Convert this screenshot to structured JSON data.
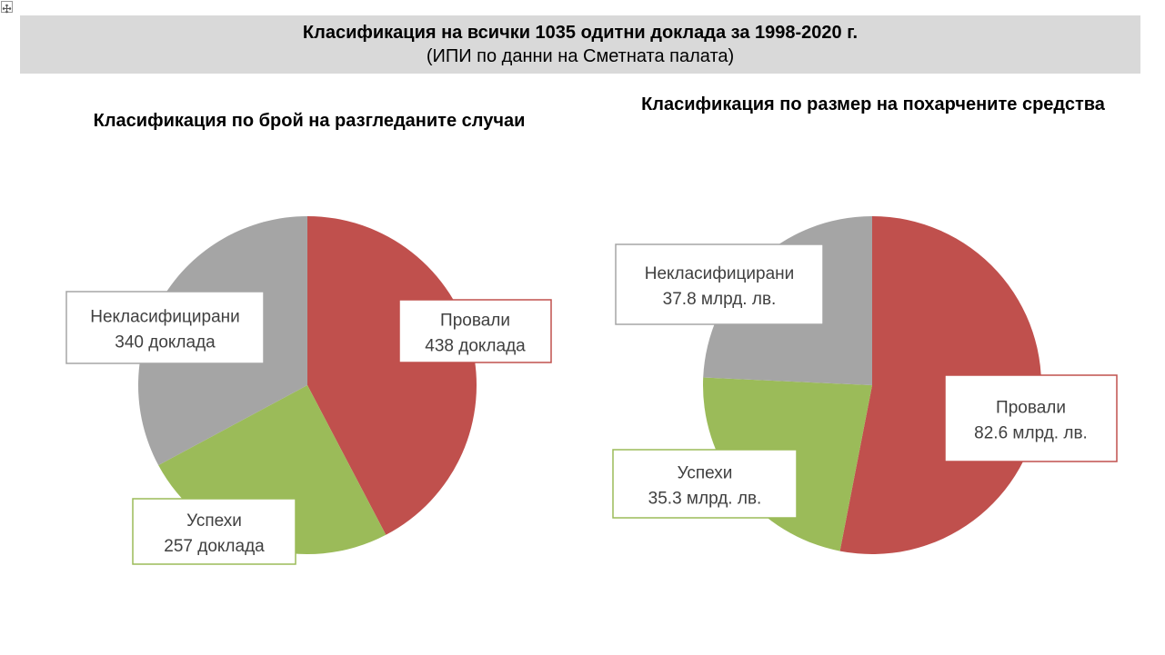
{
  "header": {
    "title": "Класификация на всички 1035 одитни доклада за 1998-2020 г.",
    "subtitle": "(ИПИ по данни на Сметната палата)"
  },
  "chart_data": [
    {
      "type": "pie",
      "title": "Класификация по брой на разгледаните случаи",
      "slices": [
        {
          "category": "Провали",
          "value": 438,
          "label": "438 доклада",
          "color": "#c0504d"
        },
        {
          "category": "Успехи",
          "value": 257,
          "label": "257 доклада",
          "color": "#9bbb59"
        },
        {
          "category": "Некласифицирани",
          "value": 340,
          "label": "340 доклада",
          "color": "#a5a5a5"
        }
      ]
    },
    {
      "type": "pie",
      "title": "Класификация по размер на похарчените средства",
      "slices": [
        {
          "category": "Провали",
          "value": 82.6,
          "label": "82.6 млрд. лв.",
          "color": "#c0504d"
        },
        {
          "category": "Успехи",
          "value": 35.3,
          "label": "35.3 млрд. лв.",
          "color": "#9bbb59"
        },
        {
          "category": "Некласифицирани",
          "value": 37.8,
          "label": "37.8 млрд. лв.",
          "color": "#a5a5a5"
        }
      ]
    }
  ]
}
